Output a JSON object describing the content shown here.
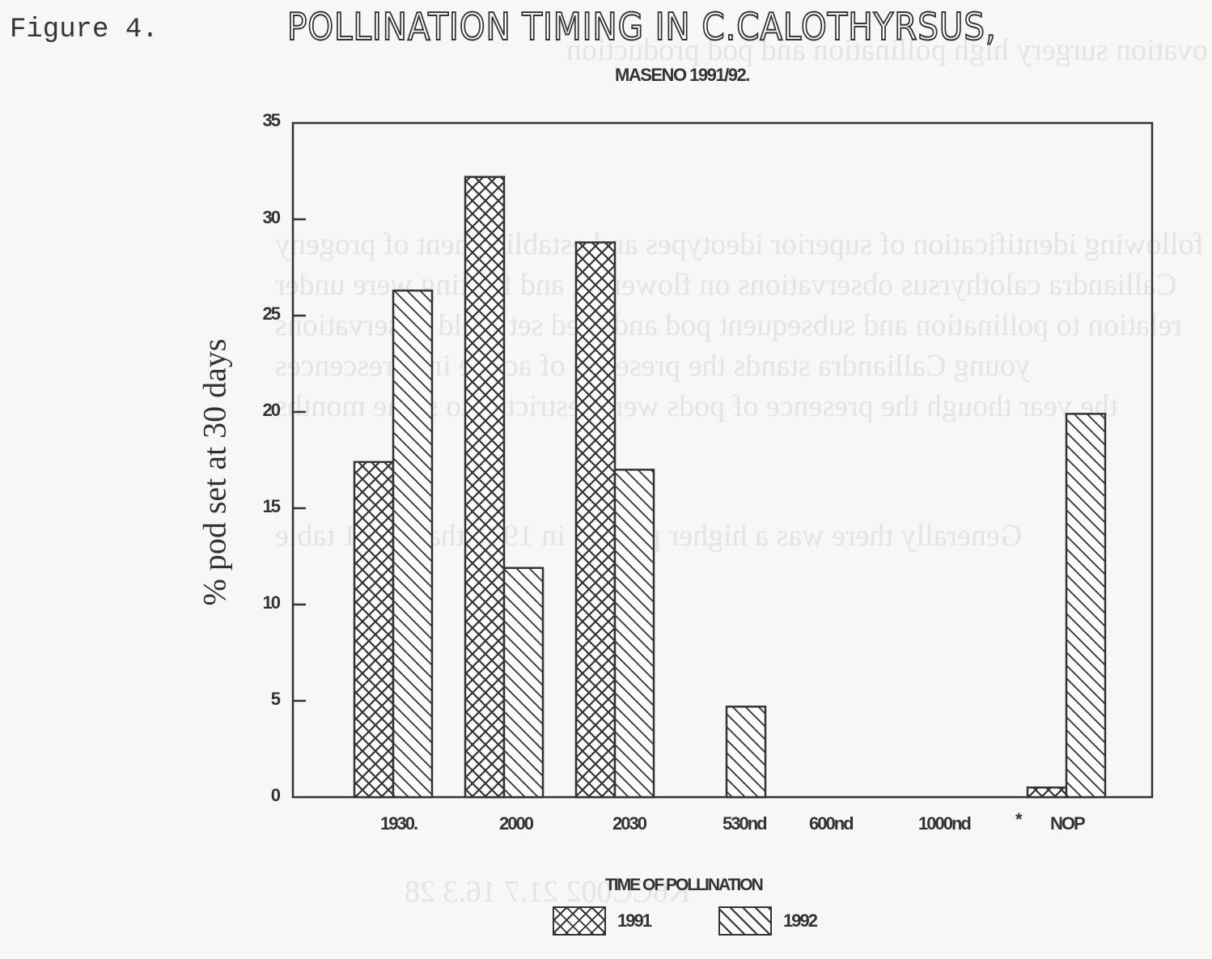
{
  "figure_label": "Figure 4.",
  "title": "POLLINATION TIMING IN C.CALOTHYRSUS,",
  "subtitle": "MASENO 1991/92.",
  "chart_data": {
    "type": "bar",
    "title": "POLLINATION TIMING IN C.CALOTHYRSUS, MASENO 1991/92.",
    "xlabel": "TIME OF POLLINATION",
    "ylabel": "% pod set at 30 days",
    "categories": [
      "1930.",
      "2000",
      "2030",
      "530nd",
      "600nd",
      "1000nd",
      "NOP"
    ],
    "series": [
      {
        "name": "1991",
        "pattern": "crosshatch",
        "values": [
          17.4,
          32.2,
          28.8,
          0,
          0,
          0,
          0.5
        ]
      },
      {
        "name": "1992",
        "pattern": "diagonal",
        "values": [
          26.3,
          11.9,
          17.0,
          4.7,
          0,
          0,
          19.9
        ]
      }
    ],
    "ylim": [
      0,
      35
    ],
    "yticks": [
      0,
      5,
      10,
      15,
      20,
      25,
      30,
      35
    ],
    "grid": false,
    "legend_position": "bottom",
    "annotations": [
      "*"
    ]
  },
  "axis": {
    "yticks": [
      "35",
      "30",
      "25",
      "20",
      "15",
      "10",
      "5",
      "0"
    ],
    "ylabel": "% pod set at 30 days",
    "xticks": [
      "1930.",
      "2000",
      "2030",
      "530nd",
      "600nd",
      "1000nd",
      "*",
      "NOP"
    ],
    "xlabel": "TIME OF POLLINATION"
  },
  "legend": [
    {
      "label": "1991"
    },
    {
      "label": "1992"
    }
  ],
  "colors": {
    "ink": "#333333",
    "paper": "#f7f7f5",
    "bleed": "#e4e4e2"
  }
}
